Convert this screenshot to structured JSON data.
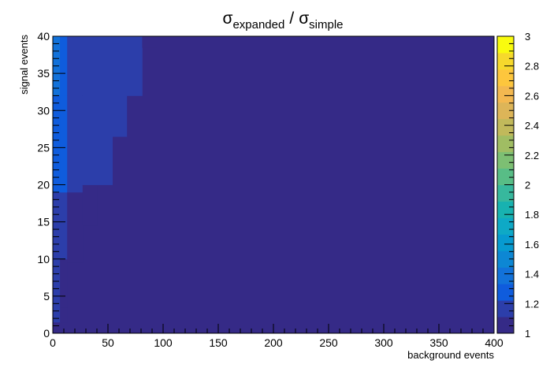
{
  "chart_data": {
    "type": "heatmap",
    "title": {
      "num_symbol": "σ",
      "num_sub": "expanded",
      "separator": "/",
      "den_symbol": "σ",
      "den_sub": "simple"
    },
    "xlabel": "background events",
    "ylabel": "signal events",
    "xlim": [
      0,
      400
    ],
    "ylim": [
      0,
      40
    ],
    "zlim": [
      1,
      3
    ],
    "x_tick_labels": [
      "0",
      "50",
      "100",
      "150",
      "200",
      "250",
      "300",
      "350",
      "400"
    ],
    "y_tick_labels": [
      "0",
      "5",
      "10",
      "15",
      "20",
      "25",
      "30",
      "35",
      "40"
    ],
    "z_tick_labels": [
      "1",
      "1.2",
      "1.4",
      "1.6",
      "1.8",
      "2",
      "2.2",
      "2.4",
      "2.6",
      "2.8",
      "3"
    ],
    "colormap": [
      "#352a87",
      "#2c3eaa",
      "#0f5cdd",
      "#1272da",
      "#0d87d4",
      "#079ad0",
      "#0ea9c6",
      "#18b2b0",
      "#37b89d",
      "#58bd86",
      "#7dbf73",
      "#a0bd63",
      "#c1b95b",
      "#ddb558",
      "#f3b850",
      "#fdc63d",
      "#f6d92c",
      "#f9fb0e"
    ],
    "background_value": 1.05,
    "cells": [
      {
        "x": [
          0,
          6.5
        ],
        "y": [
          0,
          1.5
        ],
        "z": 1.09
      },
      {
        "x": [
          0,
          6.5
        ],
        "y": [
          1.5,
          3.5
        ],
        "z": 1.12
      },
      {
        "x": [
          0,
          6.5
        ],
        "y": [
          3.5,
          6.5
        ],
        "z": 1.14
      },
      {
        "x": [
          0,
          6.5
        ],
        "y": [
          6.5,
          10
        ],
        "z": 1.16
      },
      {
        "x": [
          0,
          6.5
        ],
        "y": [
          10,
          19
        ],
        "z": 1.2
      },
      {
        "x": [
          0,
          6.5
        ],
        "y": [
          19,
          32
        ],
        "z": 1.28
      },
      {
        "x": [
          0,
          6.5
        ],
        "y": [
          32,
          40
        ],
        "z": 1.34
      },
      {
        "x": [
          6.5,
          13
        ],
        "y": [
          1.5,
          3.5
        ],
        "z": 1.07
      },
      {
        "x": [
          6.5,
          13
        ],
        "y": [
          3.5,
          10
        ],
        "z": 1.1
      },
      {
        "x": [
          6.5,
          13
        ],
        "y": [
          10,
          19
        ],
        "z": 1.16
      },
      {
        "x": [
          6.5,
          13
        ],
        "y": [
          19,
          32
        ],
        "z": 1.23
      },
      {
        "x": [
          6.5,
          13
        ],
        "y": [
          32,
          40
        ],
        "z": 1.3
      },
      {
        "x": [
          13,
          27
        ],
        "y": [
          9.5,
          19
        ],
        "z": 1.1
      },
      {
        "x": [
          13,
          27
        ],
        "y": [
          19,
          32
        ],
        "z": 1.18
      },
      {
        "x": [
          13,
          27
        ],
        "y": [
          32,
          40
        ],
        "z": 1.22
      },
      {
        "x": [
          27,
          40
        ],
        "y": [
          14.5,
          20
        ],
        "z": 1.1
      },
      {
        "x": [
          27,
          40
        ],
        "y": [
          20,
          32
        ],
        "z": 1.14
      },
      {
        "x": [
          27,
          40
        ],
        "y": [
          32,
          40
        ],
        "z": 1.18
      },
      {
        "x": [
          40,
          54
        ],
        "y": [
          20,
          40
        ],
        "z": 1.12
      },
      {
        "x": [
          54,
          67
        ],
        "y": [
          26.5,
          40
        ],
        "z": 1.12
      },
      {
        "x": [
          67,
          81
        ],
        "y": [
          32,
          40
        ],
        "z": 1.12
      },
      {
        "x": [
          81,
          94
        ],
        "y": [
          38.5,
          40
        ],
        "z": 1.1
      }
    ]
  }
}
